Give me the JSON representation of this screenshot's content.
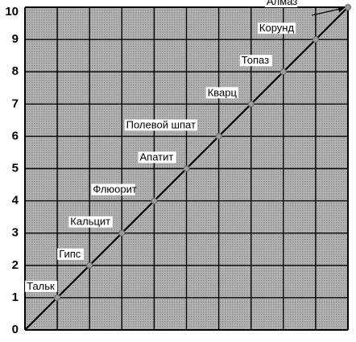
{
  "chart_data": {
    "type": "line",
    "title": "",
    "xlabel": "",
    "ylabel": "",
    "xlim": [
      0,
      10
    ],
    "ylim": [
      0,
      10
    ],
    "grid": true,
    "y_ticks": [
      "0",
      "1",
      "2",
      "3",
      "4",
      "5",
      "6",
      "7",
      "8",
      "9",
      "10"
    ],
    "points": [
      {
        "x": 1,
        "y": 1,
        "label": "Тальк"
      },
      {
        "x": 2,
        "y": 2,
        "label": "Гипс"
      },
      {
        "x": 3,
        "y": 3,
        "label": "Кальцит"
      },
      {
        "x": 4,
        "y": 4,
        "label": "Флюорит"
      },
      {
        "x": 5,
        "y": 5,
        "label": "Апатит"
      },
      {
        "x": 6,
        "y": 6,
        "label": "Полевой шпат"
      },
      {
        "x": 7,
        "y": 7,
        "label": "Кварц"
      },
      {
        "x": 8,
        "y": 8,
        "label": "Топаз"
      },
      {
        "x": 9,
        "y": 9,
        "label": "Корунд"
      },
      {
        "x": 10,
        "y": 10,
        "label": "Алмаз"
      }
    ],
    "colors": {
      "plot_bg": "#a3a3a3",
      "grid": "#000000",
      "line": "#000000",
      "marker": "#9a9a9a"
    }
  }
}
